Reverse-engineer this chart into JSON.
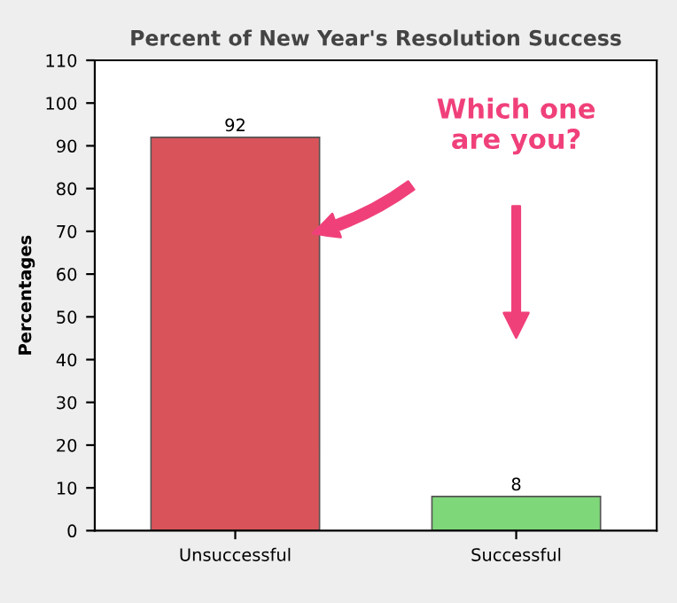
{
  "chart_data": {
    "type": "bar",
    "title": "Percent of New Year's Resolution Success",
    "ylabel": "Percentages",
    "categories": [
      "Unsuccessful",
      "Successful"
    ],
    "values": [
      92,
      8
    ],
    "colors": [
      "#d9545a",
      "#7ed87a"
    ],
    "ylim": [
      0,
      110
    ],
    "yticks": [
      0,
      10,
      20,
      30,
      40,
      50,
      60,
      70,
      80,
      90,
      100,
      110
    ],
    "grid": false,
    "data_labels": true,
    "annotations": [
      "Which one\nare you?"
    ]
  }
}
